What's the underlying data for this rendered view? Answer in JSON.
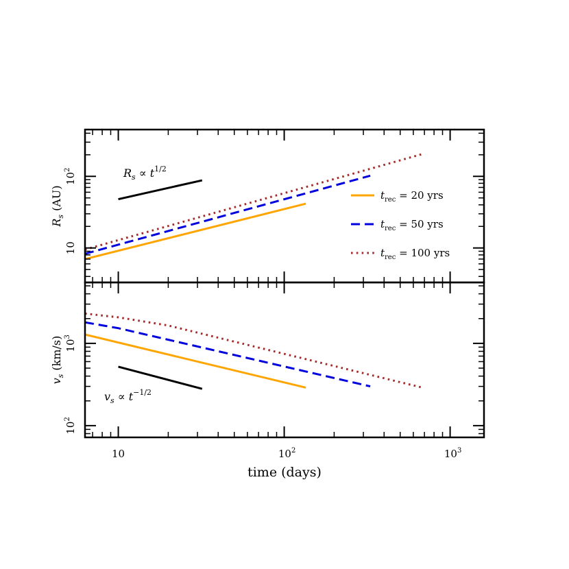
{
  "chart_data": {
    "type": "line",
    "x_axis": {
      "label": "time (days)",
      "scale": "log",
      "range": [
        6.3,
        1600
      ],
      "tick_labels": [
        {
          "value": 10,
          "base": "10",
          "exp": ""
        },
        {
          "value": 100,
          "base": "10",
          "exp": "2"
        },
        {
          "value": 1000,
          "base": "10",
          "exp": "3"
        }
      ]
    },
    "panels": [
      {
        "id": "radius",
        "y_label_main": "R",
        "y_label_sub": "s",
        "y_label_unit": " (AU)",
        "y_scale": "log",
        "y_range": [
          3.3,
          450
        ],
        "y_tick_labels": [
          {
            "value": 10,
            "base": "10",
            "exp": ""
          },
          {
            "value": 100,
            "base": "10",
            "exp": "2"
          }
        ],
        "series": [
          {
            "key": "t20",
            "x": [
              6.3,
              135
            ],
            "y": [
              7.0,
              41.5
            ]
          },
          {
            "key": "t50",
            "x": [
              6.3,
              330
            ],
            "y": [
              8.3,
              102
            ]
          },
          {
            "key": "t100",
            "x": [
              6.3,
              680
            ],
            "y": [
              9.5,
              205
            ]
          }
        ],
        "scaling_line": {
          "x": [
            10,
            32
          ],
          "y": [
            48,
            88
          ]
        },
        "annotation": {
          "main": "R",
          "sub": "s",
          "mid": " ∝ t",
          "exp": "1/2"
        }
      },
      {
        "id": "velocity",
        "y_label_main": "v",
        "y_label_sub": "s",
        "y_label_unit": " (km/s)",
        "y_scale": "log",
        "y_range": [
          72,
          5500
        ],
        "y_tick_labels": [
          {
            "value": 100,
            "base": "10",
            "exp": "2"
          },
          {
            "value": 1000,
            "base": "10",
            "exp": "3"
          }
        ],
        "series": [
          {
            "key": "t20",
            "x": [
              6.3,
              135
            ],
            "y": [
              1280,
              290
            ]
          },
          {
            "key": "t50",
            "x": [
              6.3,
              10,
              330
            ],
            "y": [
              1800,
              1530,
              300
            ]
          },
          {
            "key": "t100",
            "x": [
              6.3,
              10,
              20,
              680
            ],
            "y": [
              2300,
              2070,
              1650,
              290
            ]
          }
        ],
        "scaling_line": {
          "x": [
            10,
            32
          ],
          "y": [
            520,
            280
          ]
        },
        "annotation": {
          "main": "v",
          "sub": "s",
          "mid": " ∝ t",
          "exp": "−1/2"
        }
      }
    ],
    "legend": {
      "placement": "right of top panel",
      "entries": [
        {
          "key": "t20",
          "main": "t",
          "sub": "rec",
          "rest": " = 20 yrs",
          "color": "#FFA500",
          "dash": "solid"
        },
        {
          "key": "t50",
          "main": "t",
          "sub": "rec",
          "rest": " = 50 yrs",
          "color": "#0000DD",
          "dash": "dashed"
        },
        {
          "key": "t100",
          "main": "t",
          "sub": "rec",
          "rest": " = 100 yrs",
          "color": "#A52A2A",
          "dash": "dotted"
        }
      ]
    },
    "grid": false
  }
}
